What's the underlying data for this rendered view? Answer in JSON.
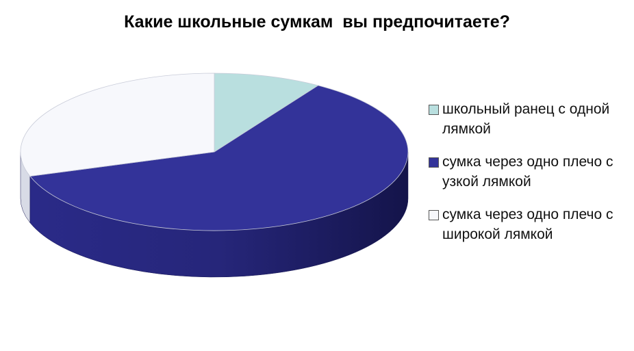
{
  "chart_data": {
    "type": "pie3d",
    "title": "Какие школьные сумкам  вы предпочитаете?",
    "categories": [
      "школьный ранец с одной лямкой",
      "сумка через одно плечо с узкой лямкой",
      "сумка через одно плечо с широкой лямкой"
    ],
    "values": [
      9,
      61,
      30
    ],
    "colors": [
      "#b9dfdf",
      "#333399",
      "#f7f8fc"
    ],
    "legend": "right"
  }
}
